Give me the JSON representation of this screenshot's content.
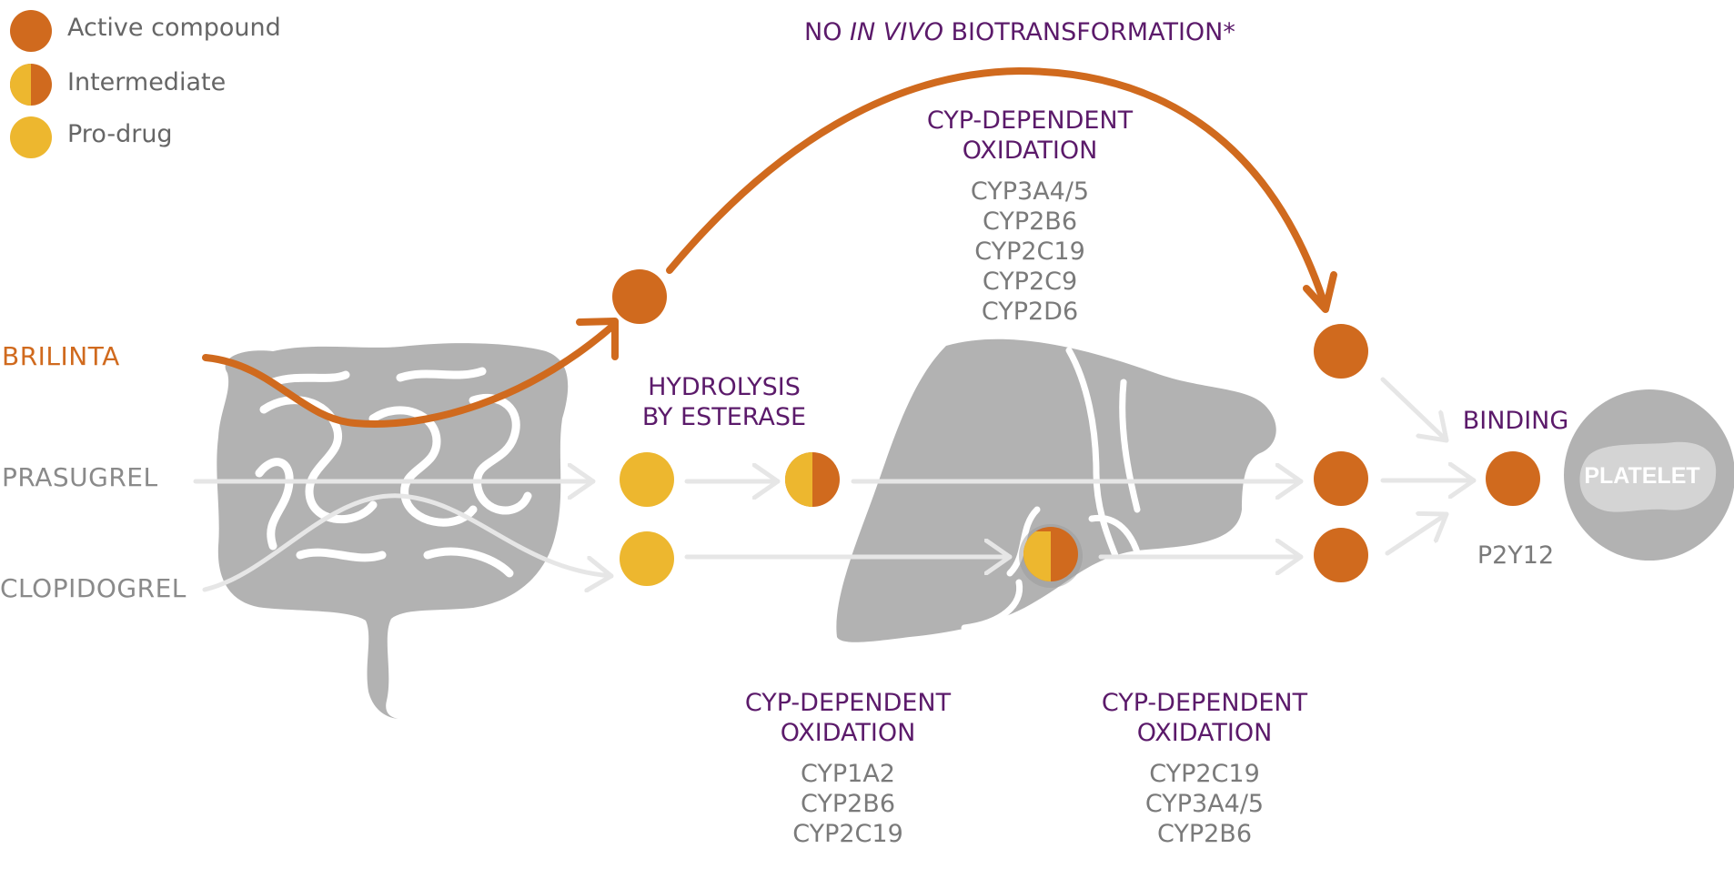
{
  "colors": {
    "active": "#D06A1E",
    "prodrug": "#EDB72F",
    "title": "#5B1A6A",
    "gray_text": "#7a7a7a",
    "organ": "#b2b2b2",
    "arrow": "#e6e6e6"
  },
  "legend": [
    {
      "label": "Active compound",
      "kind": "active"
    },
    {
      "label": "Intermediate",
      "kind": "intermediate"
    },
    {
      "label": "Pro-drug",
      "kind": "prodrug"
    }
  ],
  "drugs": {
    "brilinta": "BRILINTA",
    "prasugrel": "PRASUGREL",
    "clopidogrel": "CLOPIDOGREL"
  },
  "top_note": {
    "part1": "NO ",
    "italic": "IN VIVO",
    "part2": " BIOTRANSFORMATION*"
  },
  "steps": {
    "hydrolysis": {
      "line1": "HYDROLYSIS",
      "line2": "BY ESTERASE"
    },
    "cyp_top": {
      "line1": "CYP-DEPENDENT",
      "line2": "OXIDATION",
      "enzymes": [
        "CYP3A4/5",
        "CYP2B6",
        "CYP2C19",
        "CYP2C9",
        "CYP2D6"
      ]
    },
    "cyp_bottom_left": {
      "line1": "CYP-DEPENDENT",
      "line2": "OXIDATION",
      "enzymes": [
        "CYP1A2",
        "CYP2B6",
        "CYP2C19"
      ]
    },
    "cyp_bottom_right": {
      "line1": "CYP-DEPENDENT",
      "line2": "OXIDATION",
      "enzymes": [
        "CYP2C19",
        "CYP3A4/5",
        "CYP2B6"
      ]
    },
    "binding": "BINDING",
    "receptor": "P2Y12",
    "platelet": "PLATELET"
  },
  "icons": {
    "intestine": "intestine-icon",
    "liver": "liver-icon",
    "platelet": "platelet-icon"
  }
}
